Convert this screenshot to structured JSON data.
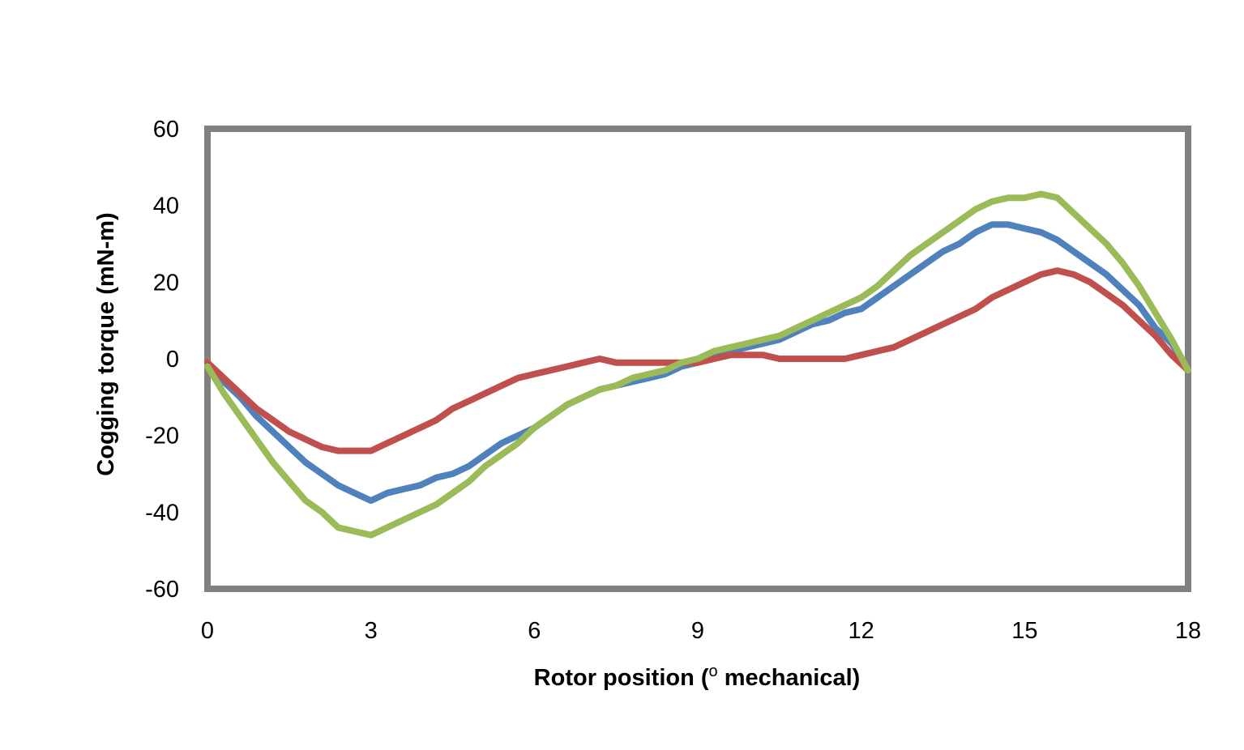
{
  "chart_data": {
    "type": "line",
    "title": "",
    "xlabel": "Rotor position (",
    "xlabel_superscript": "o",
    "xlabel_suffix": " mechanical)",
    "ylabel": "Cogging torque (mN-m)",
    "xlim": [
      0,
      18
    ],
    "ylim": [
      -60,
      60
    ],
    "xticks": [
      0,
      3,
      6,
      9,
      12,
      15,
      18
    ],
    "yticks": [
      -60,
      -40,
      -20,
      0,
      20,
      40,
      60
    ],
    "grid": false,
    "legend": "none",
    "frame_color": "#808080",
    "series": [
      {
        "color": "#4f81bd",
        "x": [
          0,
          0.3,
          0.6,
          0.9,
          1.2,
          1.5,
          1.8,
          2.1,
          2.4,
          2.7,
          3.0,
          3.3,
          3.6,
          3.9,
          4.2,
          4.5,
          4.8,
          5.1,
          5.4,
          5.7,
          6.0,
          6.3,
          6.6,
          6.9,
          7.2,
          7.5,
          7.8,
          8.1,
          8.4,
          8.7,
          9.0,
          9.3,
          9.6,
          9.9,
          10.2,
          10.5,
          10.8,
          11.1,
          11.4,
          11.7,
          12.0,
          12.3,
          12.6,
          12.9,
          13.2,
          13.5,
          13.8,
          14.1,
          14.4,
          14.7,
          15.0,
          15.3,
          15.6,
          15.9,
          16.2,
          16.5,
          16.8,
          17.1,
          17.4,
          17.7,
          18.0
        ],
        "y": [
          -2,
          -6,
          -10,
          -15,
          -19,
          -23,
          -27,
          -30,
          -33,
          -35,
          -37,
          -35,
          -34,
          -33,
          -31,
          -30,
          -28,
          -25,
          -22,
          -20,
          -18,
          -15,
          -12,
          -10,
          -8,
          -7,
          -6,
          -5,
          -4,
          -2,
          -1,
          1,
          2,
          3,
          4,
          5,
          7,
          9,
          10,
          12,
          13,
          16,
          19,
          22,
          25,
          28,
          30,
          33,
          35,
          35,
          34,
          33,
          31,
          28,
          25,
          22,
          18,
          14,
          8,
          4,
          -3
        ]
      },
      {
        "color": "#c0504d",
        "x": [
          0,
          0.3,
          0.6,
          0.9,
          1.2,
          1.5,
          1.8,
          2.1,
          2.4,
          2.7,
          3.0,
          3.3,
          3.6,
          3.9,
          4.2,
          4.5,
          4.8,
          5.1,
          5.4,
          5.7,
          6.0,
          6.3,
          6.6,
          6.9,
          7.2,
          7.5,
          7.8,
          8.1,
          8.4,
          8.7,
          9.0,
          9.3,
          9.6,
          9.9,
          10.2,
          10.5,
          10.8,
          11.1,
          11.4,
          11.7,
          12.0,
          12.3,
          12.6,
          12.9,
          13.2,
          13.5,
          13.8,
          14.1,
          14.4,
          14.7,
          15.0,
          15.3,
          15.6,
          15.9,
          16.2,
          16.5,
          16.8,
          17.1,
          17.4,
          17.7,
          18.0
        ],
        "y": [
          -1,
          -5,
          -9,
          -13,
          -16,
          -19,
          -21,
          -23,
          -24,
          -24,
          -24,
          -22,
          -20,
          -18,
          -16,
          -13,
          -11,
          -9,
          -7,
          -5,
          -4,
          -3,
          -2,
          -1,
          0,
          -1,
          -1,
          -1,
          -1,
          -1,
          -1,
          0,
          1,
          1,
          1,
          0,
          0,
          0,
          0,
          0,
          1,
          2,
          3,
          5,
          7,
          9,
          11,
          13,
          16,
          18,
          20,
          22,
          23,
          22,
          20,
          17,
          14,
          10,
          6,
          1,
          -3
        ]
      },
      {
        "color": "#9bbb59",
        "x": [
          0,
          0.3,
          0.6,
          0.9,
          1.2,
          1.5,
          1.8,
          2.1,
          2.4,
          2.7,
          3.0,
          3.3,
          3.6,
          3.9,
          4.2,
          4.5,
          4.8,
          5.1,
          5.4,
          5.7,
          6.0,
          6.3,
          6.6,
          6.9,
          7.2,
          7.5,
          7.8,
          8.1,
          8.4,
          8.7,
          9.0,
          9.3,
          9.6,
          9.9,
          10.2,
          10.5,
          10.8,
          11.1,
          11.4,
          11.7,
          12.0,
          12.3,
          12.6,
          12.9,
          13.2,
          13.5,
          13.8,
          14.1,
          14.4,
          14.7,
          15.0,
          15.3,
          15.6,
          15.9,
          16.2,
          16.5,
          16.8,
          17.1,
          17.4,
          17.7,
          18.0
        ],
        "y": [
          -2,
          -9,
          -15,
          -21,
          -27,
          -32,
          -37,
          -40,
          -44,
          -45,
          -46,
          -44,
          -42,
          -40,
          -38,
          -35,
          -32,
          -28,
          -25,
          -22,
          -18,
          -15,
          -12,
          -10,
          -8,
          -7,
          -5,
          -4,
          -3,
          -1,
          0,
          2,
          3,
          4,
          5,
          6,
          8,
          10,
          12,
          14,
          16,
          19,
          23,
          27,
          30,
          33,
          36,
          39,
          41,
          42,
          42,
          43,
          42,
          38,
          34,
          30,
          25,
          19,
          12,
          5,
          -3
        ]
      }
    ]
  }
}
